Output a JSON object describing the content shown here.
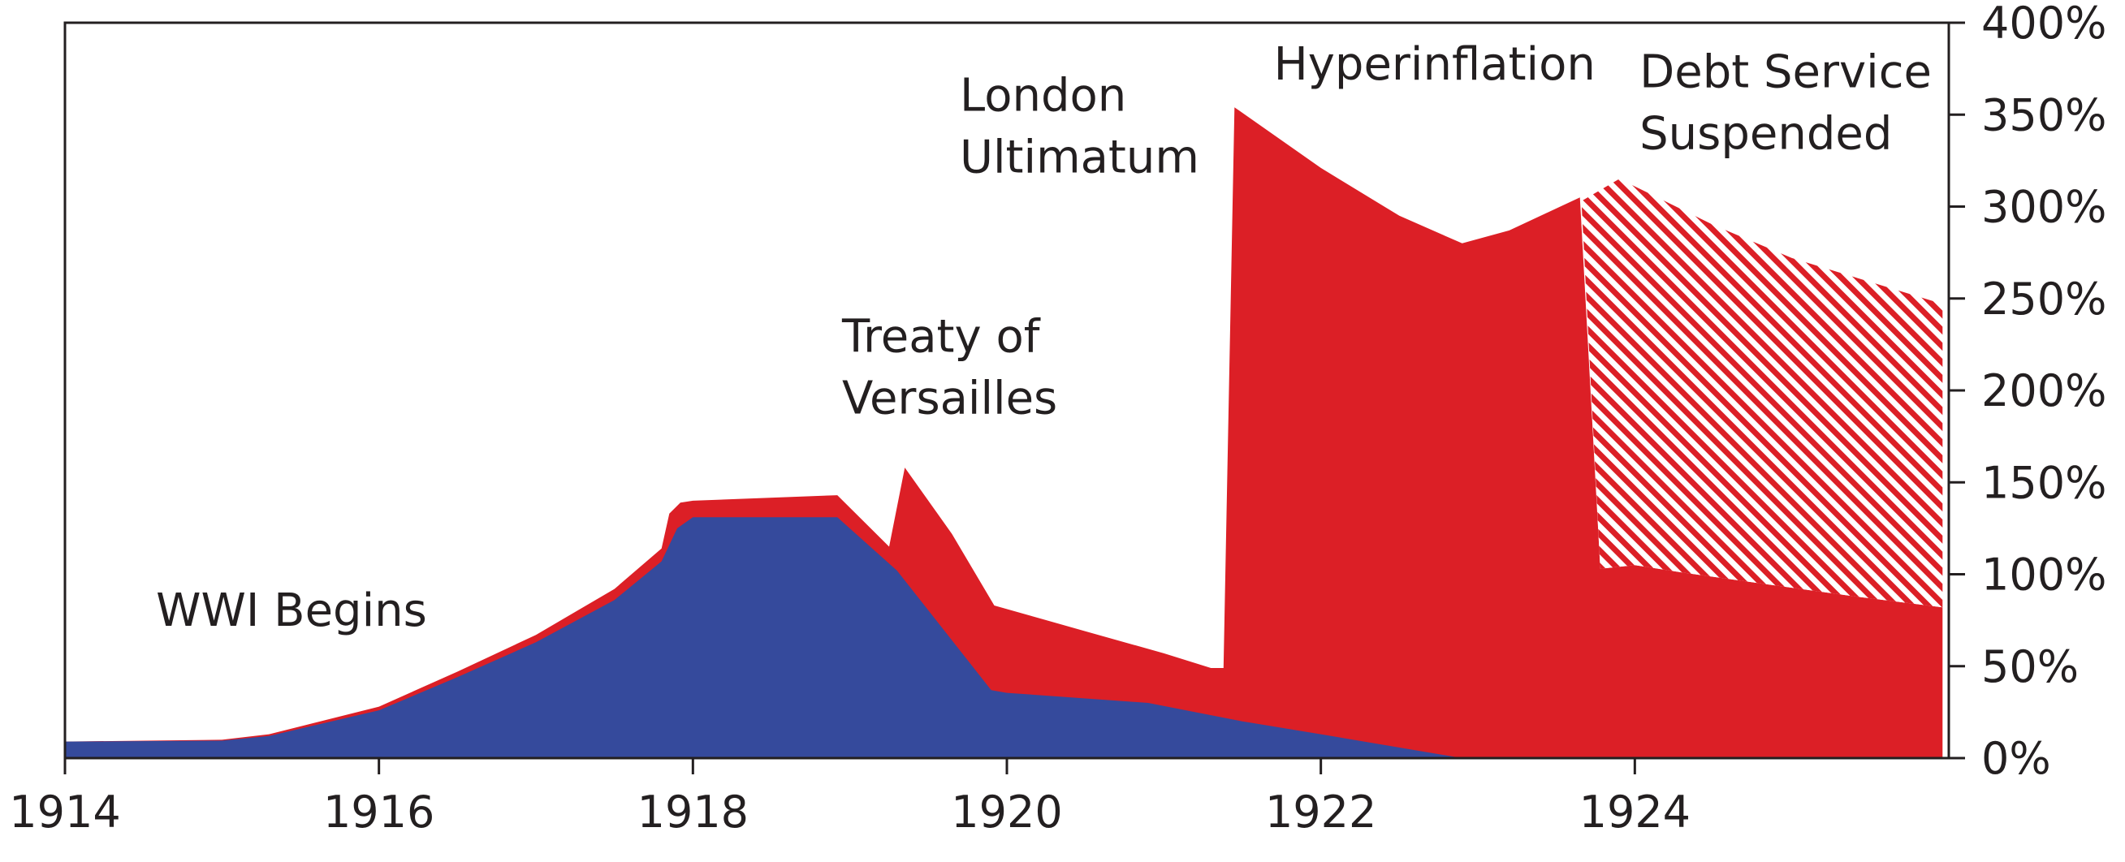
{
  "chart_data": {
    "type": "area",
    "title": "",
    "xlabel": "",
    "ylabel": "",
    "xlim": [
      1914,
      1926
    ],
    "ylim": [
      0,
      400
    ],
    "x_ticks": [
      1914,
      1916,
      1918,
      1920,
      1922,
      1924
    ],
    "x_tick_labels": [
      "1914",
      "1916",
      "1918",
      "1920",
      "1922",
      "1924"
    ],
    "y_ticks": [
      0,
      50,
      100,
      150,
      200,
      250,
      300,
      350,
      400
    ],
    "y_tick_labels": [
      "0%",
      "50%",
      "100%",
      "150%",
      "200%",
      "250%",
      "300%",
      "350%",
      "400%"
    ],
    "y_axis_side": "right",
    "grid": false,
    "legend": "none",
    "colors": {
      "blue": "#354a9c",
      "red": "#dc1f26",
      "hatch": "#dc1f26",
      "axis": "#231f20"
    },
    "series": [
      {
        "color": "#354a9c",
        "fill": "solid",
        "points": [
          [
            1914.0,
            9
          ],
          [
            1915.0,
            9.5
          ],
          [
            1915.3,
            12
          ],
          [
            1916.0,
            26
          ],
          [
            1916.5,
            44
          ],
          [
            1917.0,
            63
          ],
          [
            1917.5,
            86
          ],
          [
            1917.8,
            107
          ],
          [
            1917.9,
            125
          ],
          [
            1918.0,
            131
          ],
          [
            1918.5,
            131
          ],
          [
            1918.92,
            131
          ],
          [
            1919.3,
            102
          ],
          [
            1919.9,
            37
          ],
          [
            1920.0,
            35.5
          ],
          [
            1920.9,
            30
          ],
          [
            1921.5,
            20
          ],
          [
            1922.0,
            13
          ],
          [
            1922.9,
            0
          ],
          [
            1925.96,
            0
          ]
        ]
      },
      {
        "color": "#dc1f26",
        "fill": "solid",
        "points": [
          [
            1914.0,
            9
          ],
          [
            1915.0,
            10
          ],
          [
            1915.3,
            13
          ],
          [
            1916.0,
            28
          ],
          [
            1916.5,
            47
          ],
          [
            1917.0,
            67
          ],
          [
            1917.5,
            92
          ],
          [
            1917.8,
            114
          ],
          [
            1917.85,
            133
          ],
          [
            1917.92,
            139
          ],
          [
            1918.0,
            140
          ],
          [
            1918.92,
            143
          ],
          [
            1919.25,
            115
          ],
          [
            1919.35,
            158
          ],
          [
            1919.65,
            122
          ],
          [
            1919.92,
            83
          ],
          [
            1920.5,
            69
          ],
          [
            1921.0,
            57
          ],
          [
            1921.3,
            49
          ],
          [
            1921.38,
            49
          ],
          [
            1921.45,
            354
          ],
          [
            1922.0,
            321
          ],
          [
            1922.5,
            295
          ],
          [
            1922.9,
            280
          ],
          [
            1923.2,
            287
          ],
          [
            1923.65,
            305
          ],
          [
            1923.78,
            103
          ],
          [
            1924.0,
            105
          ],
          [
            1924.3,
            101
          ],
          [
            1924.8,
            95
          ],
          [
            1925.4,
            88
          ],
          [
            1925.96,
            82
          ]
        ]
      },
      {
        "color": "#dc1f26",
        "fill": "hatched",
        "points": [
          [
            1923.66,
            303
          ],
          [
            1923.9,
            315
          ],
          [
            1924.0,
            311
          ],
          [
            1924.5,
            290
          ],
          [
            1925.0,
            272
          ],
          [
            1925.5,
            259
          ],
          [
            1925.96,
            247
          ]
        ]
      }
    ],
    "annotations": [
      {
        "lines": [
          "WWI Begins"
        ],
        "x": 1914.58,
        "y": 72
      },
      {
        "lines": [
          "Treaty of",
          "Versailles"
        ],
        "x": 1918.95,
        "y": 221
      },
      {
        "lines": [
          "London",
          "Ultimatum"
        ],
        "x": 1919.7,
        "y": 352
      },
      {
        "lines": [
          "Hyperinflation"
        ],
        "x": 1921.7,
        "y": 369
      },
      {
        "lines": [
          "Debt Service",
          "Suspended"
        ],
        "x": 1924.03,
        "y": 365
      }
    ]
  }
}
